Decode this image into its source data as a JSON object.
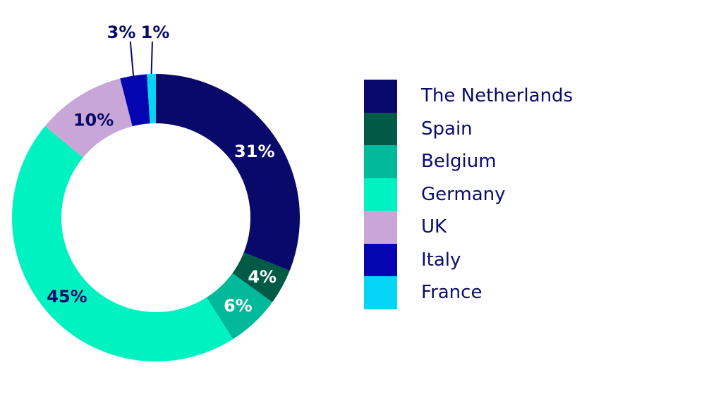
{
  "chart_data": {
    "type": "pie",
    "categories": [
      "The Netherlands",
      "Spain",
      "Belgium",
      "Germany",
      "UK",
      "Italy",
      "France"
    ],
    "values": [
      31,
      4,
      6,
      45,
      10,
      3,
      1
    ],
    "labels": [
      "31%",
      "4%",
      "6%",
      "45%",
      "10%",
      "3%",
      "1%"
    ],
    "colors": [
      "#09096b",
      "#005a46",
      "#00b89a",
      "#00f2c0",
      "#c9a6d8",
      "#0404b0",
      "#05d6f8"
    ],
    "label_colors": [
      "#ffffff",
      "#ffffff",
      "#ffffff",
      "#09096b",
      "#09096b",
      "#09096b",
      "#09096b"
    ],
    "donut": true,
    "legend_position": "right"
  }
}
